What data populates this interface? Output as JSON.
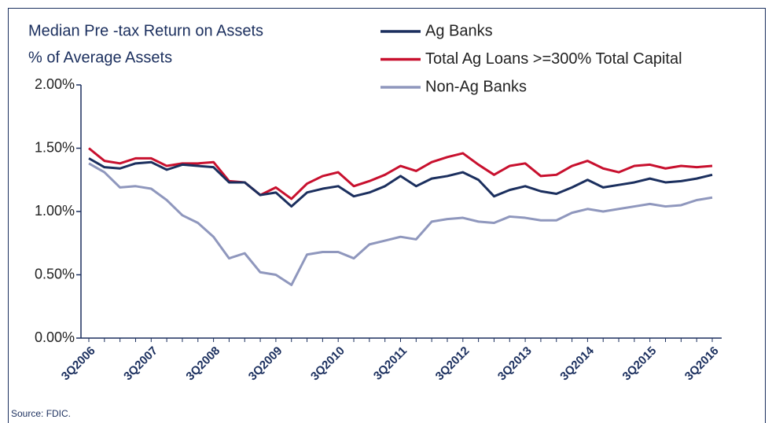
{
  "chart_data": {
    "type": "line",
    "title": "Median Pre -tax Return on Assets",
    "subtitle": "% of Average Assets",
    "source": "Source: FDIC.",
    "categories": [
      "3Q2006",
      null,
      null,
      null,
      "3Q2007",
      null,
      null,
      null,
      "3Q2008",
      null,
      null,
      null,
      "3Q2009",
      null,
      null,
      null,
      "3Q2010",
      null,
      null,
      null,
      "3Q2011",
      null,
      null,
      null,
      "3Q2012",
      null,
      null,
      null,
      "3Q2013",
      null,
      null,
      null,
      "3Q2014",
      null,
      null,
      null,
      "3Q2015",
      null,
      null,
      null,
      "3Q2016"
    ],
    "series": [
      {
        "name": "Ag Banks",
        "color": "#1b2f5e",
        "values": [
          1.42,
          1.35,
          1.34,
          1.38,
          1.39,
          1.33,
          1.37,
          1.36,
          1.35,
          1.23,
          1.23,
          1.13,
          1.15,
          1.04,
          1.15,
          1.18,
          1.2,
          1.12,
          1.15,
          1.2,
          1.28,
          1.2,
          1.26,
          1.28,
          1.31,
          1.25,
          1.12,
          1.17,
          1.2,
          1.16,
          1.14,
          1.19,
          1.25,
          1.19,
          1.21,
          1.23,
          1.26,
          1.23,
          1.24,
          1.26,
          1.29
        ]
      },
      {
        "name": "Total Ag Loans >=300% Total Capital",
        "color": "#c8102e",
        "values": [
          1.5,
          1.4,
          1.38,
          1.42,
          1.42,
          1.36,
          1.38,
          1.38,
          1.39,
          1.24,
          1.23,
          1.13,
          1.19,
          1.1,
          1.22,
          1.28,
          1.31,
          1.2,
          1.24,
          1.29,
          1.36,
          1.32,
          1.39,
          1.43,
          1.46,
          1.37,
          1.29,
          1.36,
          1.38,
          1.28,
          1.29,
          1.36,
          1.4,
          1.34,
          1.31,
          1.36,
          1.37,
          1.34,
          1.36,
          1.35,
          1.36
        ]
      },
      {
        "name": "Non-Ag Banks",
        "color": "#8f97bd",
        "values": [
          1.38,
          1.31,
          1.19,
          1.2,
          1.18,
          1.09,
          0.97,
          0.91,
          0.8,
          0.63,
          0.67,
          0.52,
          0.5,
          0.42,
          0.66,
          0.68,
          0.68,
          0.63,
          0.74,
          0.77,
          0.8,
          0.78,
          0.92,
          0.94,
          0.95,
          0.92,
          0.91,
          0.96,
          0.95,
          0.93,
          0.93,
          0.99,
          1.02,
          1.0,
          1.02,
          1.04,
          1.06,
          1.04,
          1.05,
          1.09,
          1.11
        ]
      }
    ],
    "ylim": [
      0,
      2
    ],
    "yticks": [
      {
        "value": 0,
        "label": "0.00%"
      },
      {
        "value": 0.5,
        "label": "0.50%"
      },
      {
        "value": 1,
        "label": "1.00%"
      },
      {
        "value": 1.5,
        "label": "1.50%"
      },
      {
        "value": 2,
        "label": "2.00%"
      }
    ],
    "grid": false
  }
}
